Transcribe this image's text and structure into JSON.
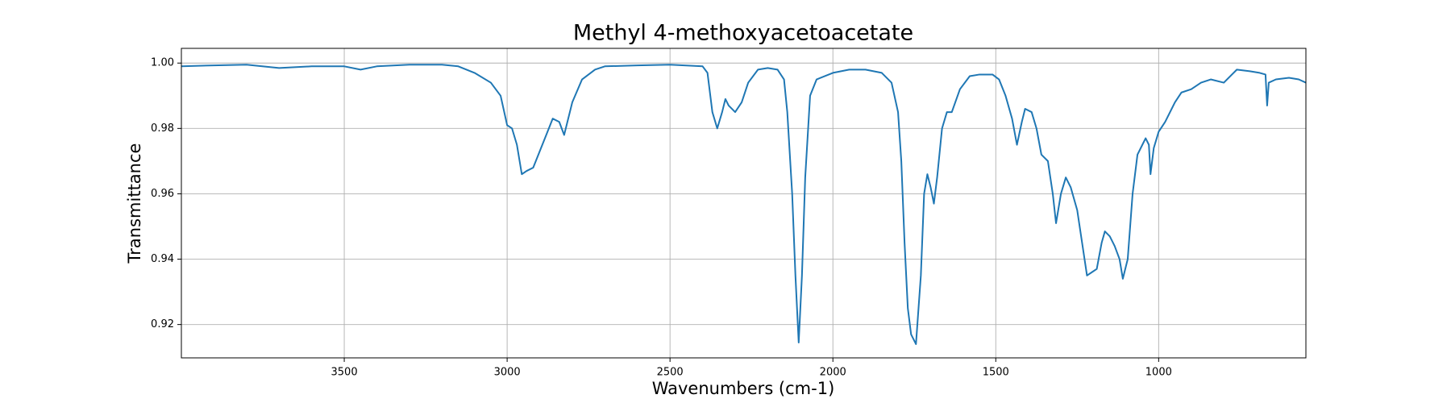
{
  "chart_data": {
    "type": "line",
    "title": "Methyl 4-methoxyacetoacetate",
    "x_label": "Wavenumbers (cm-1)",
    "y_label": "Transmittance",
    "color": "#1f77b4",
    "grid": true,
    "xlim": [
      4000,
      548
    ],
    "ylim": [
      0.9098,
      1.0045
    ],
    "xticks": [
      3500,
      3000,
      2500,
      2000,
      1500,
      1000
    ],
    "yticks": [
      {
        "value": 1,
        "label": "1.00"
      },
      0.98,
      0.96,
      0.94,
      0.92
    ],
    "x": [
      4000,
      3900,
      3800,
      3700,
      3600,
      3500,
      3450,
      3400,
      3300,
      3200,
      3150,
      3100,
      3050,
      3020,
      3000,
      2985,
      2970,
      2955,
      2940,
      2920,
      2900,
      2880,
      2860,
      2840,
      2825,
      2800,
      2770,
      2730,
      2700,
      2600,
      2500,
      2400,
      2385,
      2370,
      2355,
      2340,
      2330,
      2320,
      2300,
      2280,
      2260,
      2230,
      2200,
      2170,
      2150,
      2140,
      2125,
      2115,
      2105,
      2095,
      2085,
      2070,
      2050,
      2000,
      1950,
      1900,
      1850,
      1820,
      1800,
      1790,
      1780,
      1770,
      1760,
      1745,
      1730,
      1720,
      1710,
      1700,
      1690,
      1680,
      1665,
      1650,
      1635,
      1610,
      1580,
      1550,
      1510,
      1490,
      1470,
      1450,
      1435,
      1420,
      1410,
      1390,
      1375,
      1360,
      1340,
      1325,
      1315,
      1300,
      1285,
      1270,
      1250,
      1235,
      1220,
      1205,
      1190,
      1175,
      1165,
      1150,
      1135,
      1120,
      1110,
      1095,
      1080,
      1065,
      1050,
      1040,
      1030,
      1025,
      1015,
      1000,
      980,
      950,
      930,
      900,
      870,
      840,
      800,
      780,
      760,
      720,
      690,
      672,
      667,
      662,
      640,
      600,
      570,
      548
    ],
    "values": [
      0.999,
      0.9993,
      0.9995,
      0.9985,
      0.999,
      0.999,
      0.998,
      0.999,
      0.9995,
      0.9995,
      0.999,
      0.997,
      0.994,
      0.99,
      0.981,
      0.98,
      0.975,
      0.966,
      0.967,
      0.968,
      0.973,
      0.978,
      0.983,
      0.982,
      0.978,
      0.988,
      0.995,
      0.998,
      0.999,
      0.9993,
      0.9995,
      0.999,
      0.997,
      0.985,
      0.98,
      0.985,
      0.989,
      0.987,
      0.985,
      0.988,
      0.994,
      0.998,
      0.9985,
      0.998,
      0.995,
      0.985,
      0.96,
      0.935,
      0.9145,
      0.935,
      0.965,
      0.99,
      0.995,
      0.997,
      0.998,
      0.998,
      0.997,
      0.994,
      0.985,
      0.97,
      0.945,
      0.925,
      0.917,
      0.914,
      0.935,
      0.96,
      0.966,
      0.962,
      0.957,
      0.965,
      0.98,
      0.985,
      0.985,
      0.992,
      0.996,
      0.9965,
      0.9965,
      0.995,
      0.99,
      0.983,
      0.975,
      0.982,
      0.986,
      0.985,
      0.98,
      0.972,
      0.97,
      0.96,
      0.951,
      0.96,
      0.965,
      0.962,
      0.955,
      0.945,
      0.935,
      0.936,
      0.937,
      0.945,
      0.9485,
      0.947,
      0.944,
      0.94,
      0.934,
      0.94,
      0.96,
      0.972,
      0.975,
      0.977,
      0.975,
      0.966,
      0.974,
      0.979,
      0.982,
      0.988,
      0.991,
      0.992,
      0.994,
      0.995,
      0.994,
      0.996,
      0.998,
      0.9975,
      0.997,
      0.9965,
      0.987,
      0.994,
      0.995,
      0.9955,
      0.995,
      0.994
    ]
  }
}
